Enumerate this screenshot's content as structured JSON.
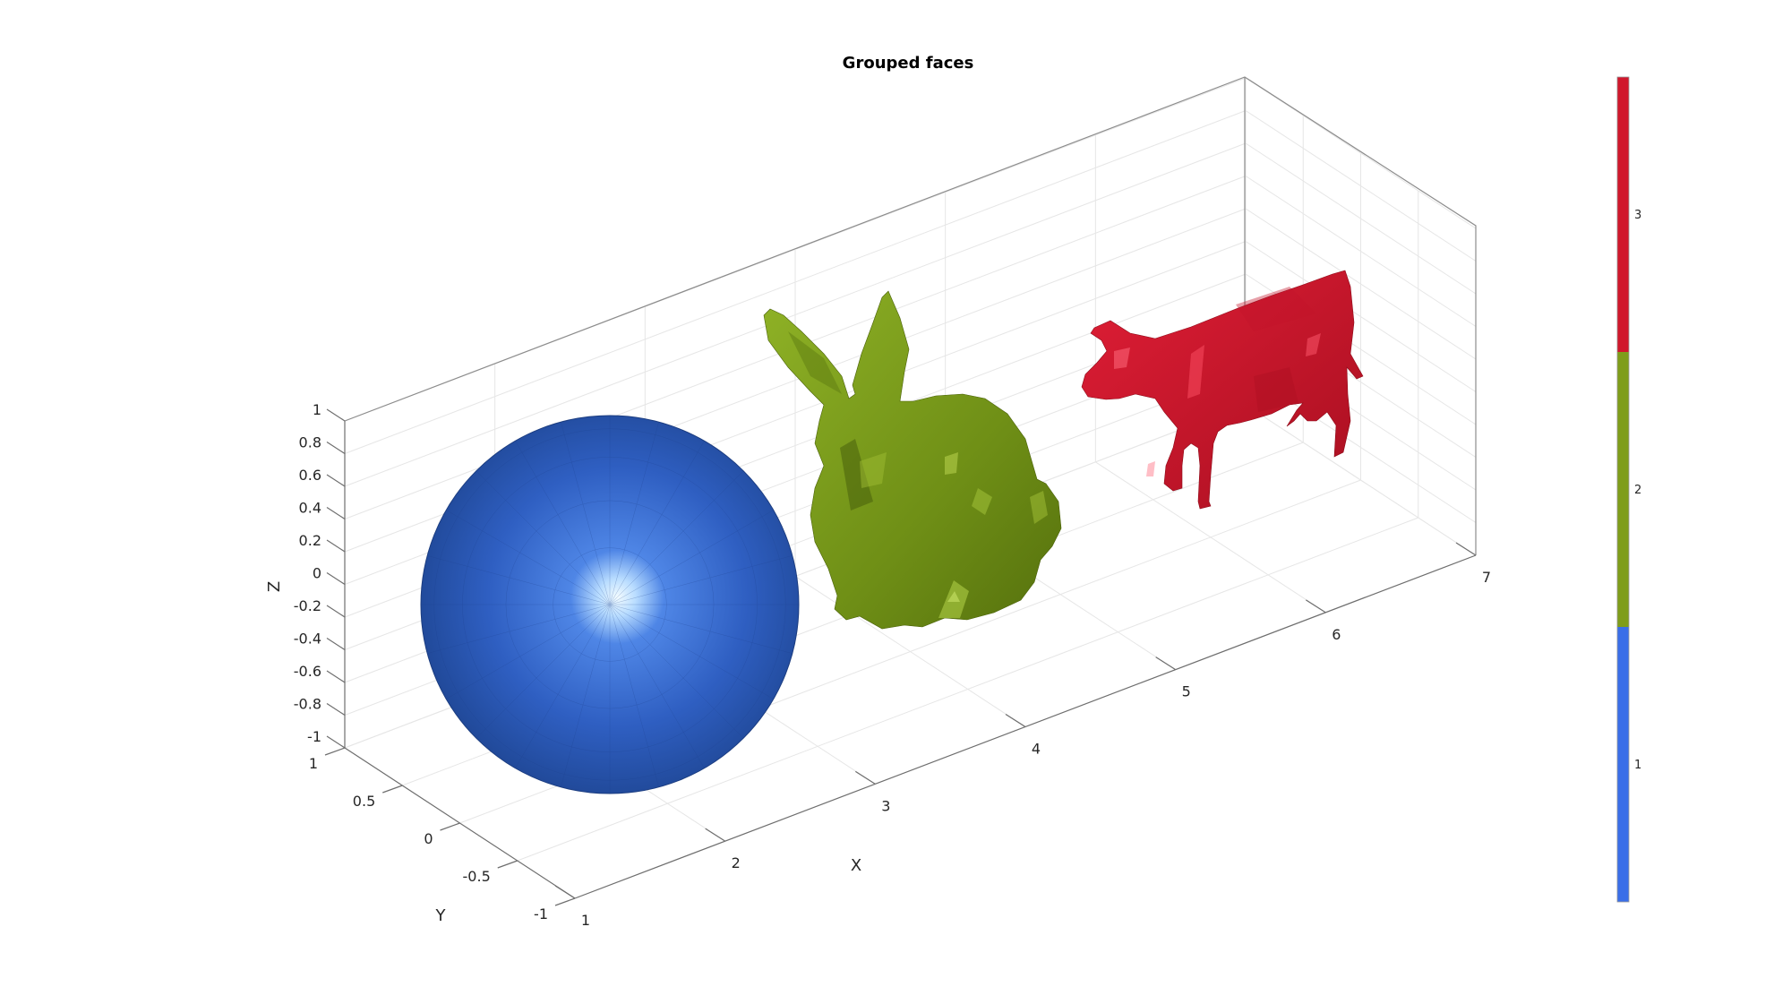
{
  "chart_data": {
    "type": "3d-mesh",
    "title": "Grouped faces",
    "xlabel": "X",
    "ylabel": "Y",
    "zlabel": "Z",
    "xlim": [
      1,
      7
    ],
    "ylim": [
      -1,
      1
    ],
    "zlim": [
      -1,
      1
    ],
    "x_ticks": [
      "1",
      "2",
      "3",
      "4",
      "5",
      "6",
      "7"
    ],
    "y_ticks": [
      "1",
      "0.5",
      "0",
      "-0.5",
      "-1"
    ],
    "z_ticks": [
      "1",
      "0.8",
      "0.6",
      "0.4",
      "0.2",
      "0",
      "-0.2",
      "-0.4",
      "-0.6",
      "-0.8",
      "-1"
    ],
    "grid": true,
    "objects": [
      {
        "shape": "sphere",
        "group": 1,
        "color": "#3a63c9"
      },
      {
        "shape": "bunny",
        "group": 2,
        "color": "#7f9d1a"
      },
      {
        "shape": "cow",
        "group": 3,
        "color": "#d0172c"
      }
    ],
    "colorbar": {
      "ticks": [
        "1",
        "2",
        "3"
      ],
      "colors": [
        "#3a6ee8",
        "#7f9d1a",
        "#d0172c"
      ]
    }
  }
}
